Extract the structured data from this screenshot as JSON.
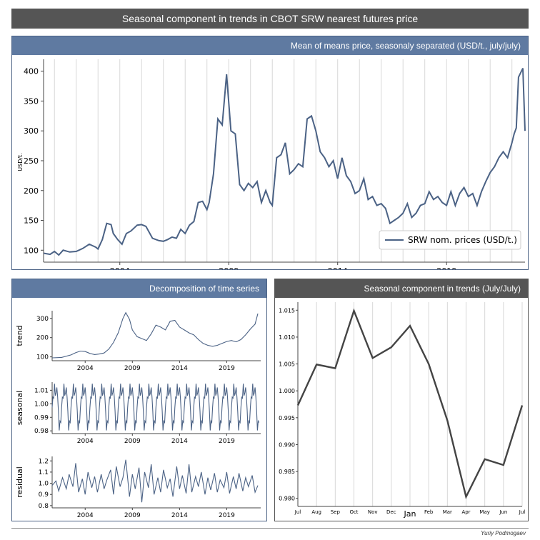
{
  "title": "Seasonal component  in trends  in CBOT SRW nearest futures price",
  "author": "Yuriy Podmogaev",
  "colors": {
    "line": "#4b6285",
    "seasonal_line": "#444444",
    "header": "#5f7aa1",
    "dark_header": "#555555"
  },
  "panels": {
    "main": {
      "header": "Mean of means  price, seasonaly separated (USD/t.,  july/july)"
    },
    "decomposition": {
      "header": "Decomposition of time series"
    },
    "seasonal": {
      "header": "Seasonal component in trends (July/July)"
    }
  },
  "chart_data": [
    {
      "id": "main",
      "type": "line",
      "ylabel": "USD/t.",
      "xlim": [
        2000.5,
        2022.6
      ],
      "ylim": [
        80,
        420
      ],
      "yticks": [
        100,
        150,
        200,
        250,
        300,
        350,
        400
      ],
      "xticks": [
        2004,
        2009,
        2014,
        2019
      ],
      "legend": "bottom-right",
      "grid": "vertical lines at each year",
      "series": [
        {
          "name": "SRW nom. prices (USD/t.)",
          "x": [
            2000.5,
            2000.8,
            2001.0,
            2001.2,
            2001.4,
            2001.7,
            2002.0,
            2002.3,
            2002.6,
            2002.9,
            2003.0,
            2003.2,
            2003.4,
            2003.6,
            2003.7,
            2003.9,
            2004.1,
            2004.3,
            2004.5,
            2004.8,
            2005.0,
            2005.2,
            2005.5,
            2005.8,
            2006.0,
            2006.2,
            2006.4,
            2006.6,
            2006.8,
            2007.0,
            2007.2,
            2007.4,
            2007.6,
            2007.8,
            2008.0,
            2008.1,
            2008.3,
            2008.5,
            2008.7,
            2008.9,
            2009.1,
            2009.3,
            2009.5,
            2009.7,
            2009.9,
            2010.1,
            2010.3,
            2010.5,
            2010.7,
            2010.9,
            2011.0,
            2011.2,
            2011.4,
            2011.6,
            2011.8,
            2012.0,
            2012.2,
            2012.4,
            2012.6,
            2012.8,
            2013.0,
            2013.2,
            2013.4,
            2013.6,
            2013.8,
            2014.0,
            2014.2,
            2014.4,
            2014.6,
            2014.8,
            2015.0,
            2015.2,
            2015.4,
            2015.6,
            2015.8,
            2016.0,
            2016.2,
            2016.4,
            2016.6,
            2016.8,
            2017.0,
            2017.2,
            2017.4,
            2017.6,
            2017.8,
            2018.0,
            2018.2,
            2018.4,
            2018.6,
            2018.8,
            2019.0,
            2019.2,
            2019.4,
            2019.6,
            2019.8,
            2020.0,
            2020.2,
            2020.4,
            2020.6,
            2020.8,
            2021.0,
            2021.2,
            2021.4,
            2021.6,
            2021.8,
            2022.0,
            2022.1,
            2022.2,
            2022.3,
            2022.5,
            2022.6
          ],
          "y": [
            95,
            93,
            98,
            92,
            100,
            97,
            98,
            103,
            110,
            105,
            102,
            118,
            145,
            143,
            128,
            118,
            110,
            128,
            132,
            142,
            143,
            140,
            120,
            116,
            115,
            118,
            122,
            120,
            135,
            128,
            142,
            148,
            180,
            182,
            168,
            180,
            228,
            320,
            310,
            395,
            300,
            295,
            210,
            200,
            212,
            205,
            215,
            180,
            200,
            180,
            175,
            255,
            260,
            280,
            228,
            235,
            245,
            240,
            320,
            325,
            300,
            265,
            255,
            240,
            250,
            220,
            255,
            225,
            215,
            195,
            200,
            220,
            185,
            190,
            175,
            178,
            170,
            145,
            150,
            155,
            162,
            178,
            155,
            162,
            175,
            178,
            198,
            185,
            190,
            180,
            175,
            198,
            175,
            195,
            205,
            190,
            195,
            175,
            198,
            215,
            230,
            240,
            255,
            265,
            255,
            280,
            295,
            305,
            390,
            405,
            300
          ]
        }
      ]
    },
    {
      "id": "decomposition",
      "type": "line",
      "subplots": [
        {
          "name": "trend",
          "ylabel": "trend",
          "yticks": [
            100,
            200,
            300
          ],
          "ylim": [
            80,
            340
          ],
          "x": [
            2000.5,
            2001.5,
            2002.5,
            2003.0,
            2003.5,
            2004.0,
            2004.5,
            2005.0,
            2005.5,
            2006.0,
            2006.5,
            2007.0,
            2007.5,
            2008.0,
            2008.3,
            2008.7,
            2009.0,
            2009.5,
            2010.0,
            2010.5,
            2011.0,
            2011.5,
            2012.0,
            2012.5,
            2013.0,
            2013.5,
            2014.0,
            2014.5,
            2015.0,
            2015.5,
            2016.0,
            2016.5,
            2017.0,
            2017.5,
            2018.0,
            2018.5,
            2019.0,
            2019.5,
            2020.0,
            2020.5,
            2021.0,
            2021.5,
            2022.0,
            2022.3
          ],
          "y": [
            95,
            97,
            110,
            122,
            130,
            128,
            118,
            112,
            115,
            120,
            140,
            175,
            225,
            300,
            330,
            295,
            240,
            205,
            195,
            185,
            220,
            265,
            255,
            240,
            285,
            290,
            255,
            240,
            225,
            215,
            190,
            170,
            160,
            155,
            160,
            170,
            180,
            185,
            178,
            190,
            215,
            245,
            270,
            325
          ]
        },
        {
          "name": "seasonal",
          "ylabel": "seasonal",
          "yticks": [
            0.98,
            0.99,
            1.0,
            1.01
          ],
          "ylim": [
            0.978,
            1.016
          ],
          "pattern": [
            0.9973,
            1.0049,
            1.0042,
            1.0149,
            1.0061,
            1.0081,
            1.0121,
            1.005,
            0.9945,
            0.9803,
            0.9873,
            0.9862
          ]
        },
        {
          "name": "residual",
          "ylabel": "residual",
          "yticks": [
            0.8,
            0.9,
            1.0,
            1.1,
            1.2
          ],
          "ylim": [
            0.78,
            1.24
          ],
          "x": [
            2000.5,
            2000.9,
            2001.2,
            2001.6,
            2002.0,
            2002.3,
            2002.7,
            2003.0,
            2003.3,
            2003.7,
            2004.0,
            2004.3,
            2004.7,
            2005.0,
            2005.3,
            2005.7,
            2006.0,
            2006.3,
            2006.7,
            2007.0,
            2007.3,
            2007.7,
            2008.0,
            2008.3,
            2008.7,
            2009.0,
            2009.3,
            2009.7,
            2010.0,
            2010.3,
            2010.7,
            2011.0,
            2011.3,
            2011.7,
            2012.0,
            2012.3,
            2012.7,
            2013.0,
            2013.3,
            2013.7,
            2014.0,
            2014.3,
            2014.7,
            2015.0,
            2015.3,
            2015.7,
            2016.0,
            2016.3,
            2016.7,
            2017.0,
            2017.3,
            2017.7,
            2018.0,
            2018.3,
            2018.7,
            2019.0,
            2019.3,
            2019.7,
            2020.0,
            2020.3,
            2020.7,
            2021.0,
            2021.3,
            2021.7,
            2022.0,
            2022.3
          ],
          "y": [
            0.98,
            1.02,
            0.93,
            1.05,
            0.95,
            1.08,
            0.97,
            1.18,
            0.92,
            1.04,
            0.9,
            1.1,
            0.96,
            1.06,
            0.92,
            1.08,
            0.95,
            1.03,
            1.12,
            0.9,
            1.15,
            0.97,
            1.05,
            1.21,
            0.88,
            1.08,
            0.95,
            1.14,
            0.83,
            1.1,
            0.96,
            1.17,
            0.9,
            1.05,
            0.92,
            1.12,
            0.96,
            1.04,
            0.88,
            1.15,
            0.95,
            1.07,
            0.91,
            1.17,
            0.92,
            1.06,
            0.97,
            1.1,
            0.9,
            1.05,
            0.94,
            1.09,
            0.92,
            1.03,
            0.96,
            1.1,
            0.91,
            1.06,
            0.95,
            1.09,
            0.93,
            1.05,
            0.97,
            1.07,
            0.92,
            0.98
          ]
        }
      ],
      "xticks": [
        2004,
        2009,
        2014,
        2019
      ],
      "xlim": [
        2000.5,
        2022.6
      ]
    },
    {
      "id": "seasonal",
      "type": "line",
      "categories": [
        "Jul",
        "Aug",
        "Sep",
        "Oct",
        "Nov",
        "Dec",
        "Jan",
        "Feb",
        "Mar",
        "Apr",
        "May",
        "Jun",
        "Jul"
      ],
      "values": [
        0.9973,
        1.0049,
        1.0042,
        1.0149,
        1.0061,
        1.0081,
        1.0121,
        1.005,
        0.9945,
        0.9803,
        0.9873,
        0.9862,
        0.9973
      ],
      "ylim": [
        0.9785,
        1.0165
      ],
      "yticks": [
        "0.980",
        "0.985",
        "0.990",
        "0.995",
        "1.000",
        "1.005",
        "1.010",
        "1.015"
      ],
      "grid": "vertical lines at each month"
    }
  ]
}
